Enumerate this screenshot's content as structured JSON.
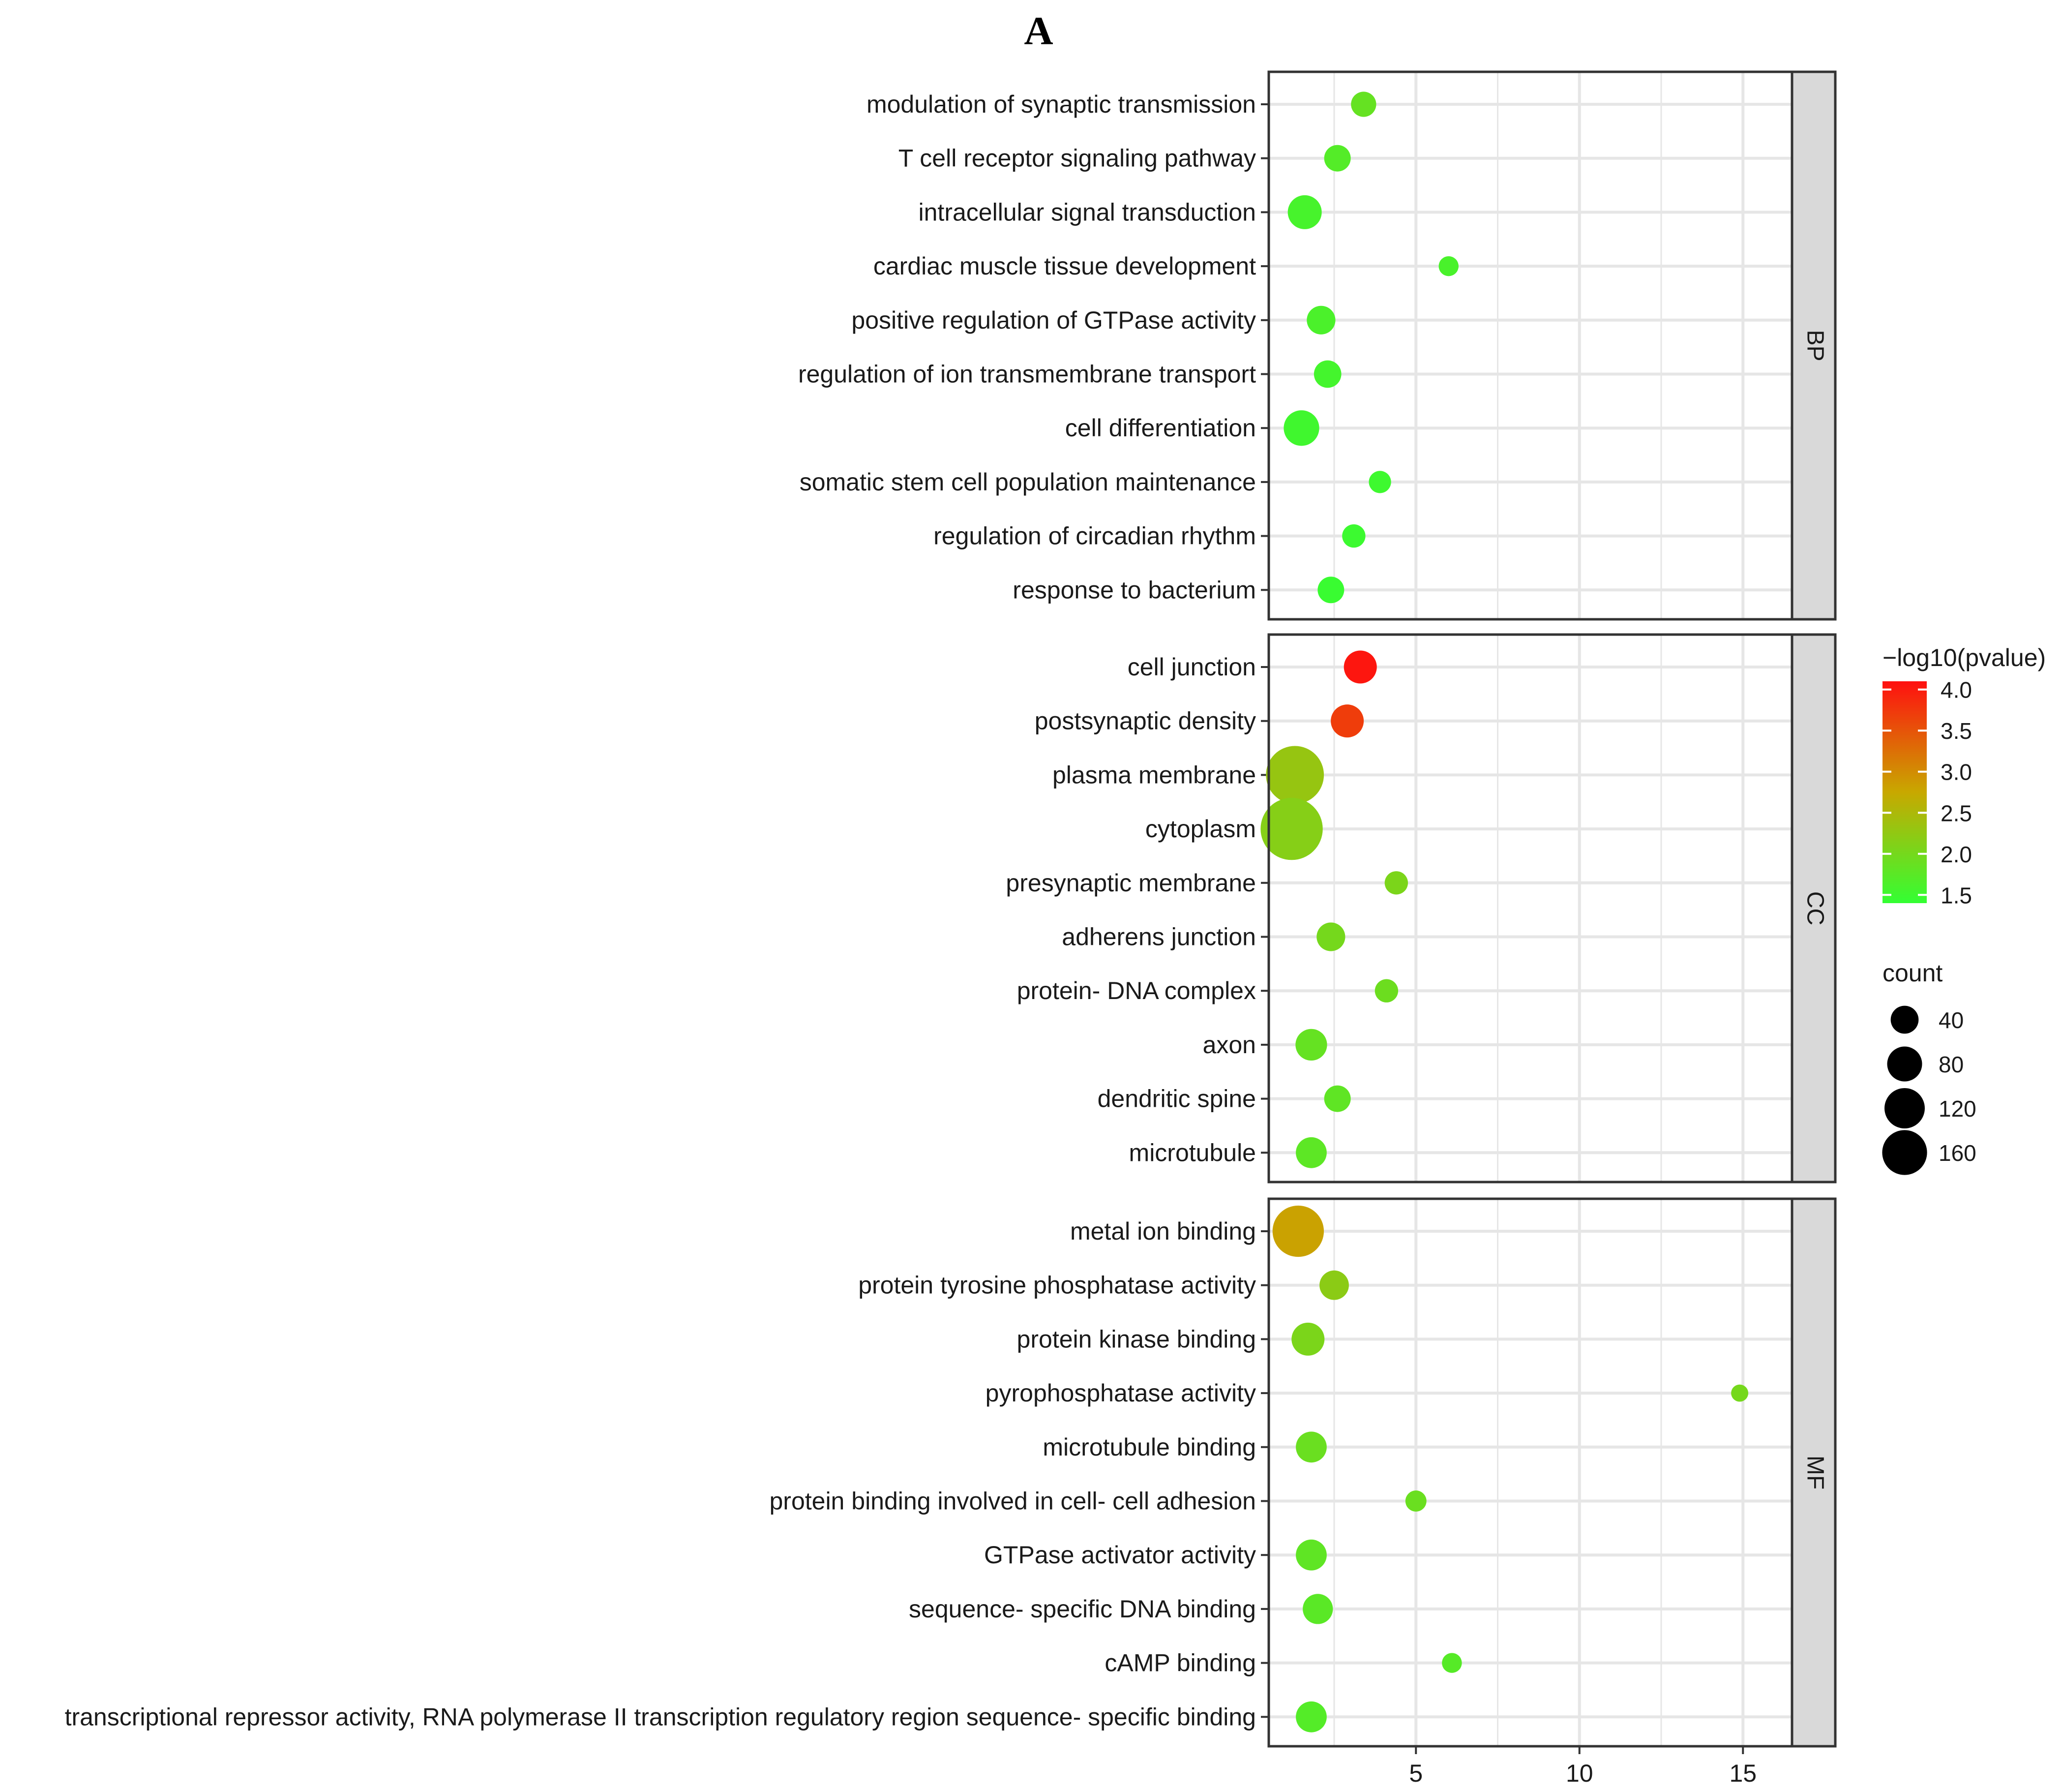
{
  "figure_label": "A",
  "chart_data": {
    "type": "scatter",
    "title": "",
    "xlabel": "",
    "ylabel": "",
    "xlim": [
      0.5,
      16.5
    ],
    "x_ticks": [
      5,
      10,
      15
    ],
    "x_tick_labels": [
      "5",
      "10",
      "15"
    ],
    "grid": true,
    "facets": [
      {
        "name": "BP",
        "items": [
          {
            "term": "modulation of synaptic transmission",
            "x": 3.4,
            "count": 22,
            "neglog10p": 1.85
          },
          {
            "term": "T cell receptor signaling pathway",
            "x": 2.6,
            "count": 25,
            "neglog10p": 1.7
          },
          {
            "term": "intracellular signal transduction",
            "x": 1.6,
            "count": 45,
            "neglog10p": 1.58
          },
          {
            "term": "cardiac muscle tissue development",
            "x": 6.0,
            "count": 12,
            "neglog10p": 1.6
          },
          {
            "term": "positive regulation of GTPase activity",
            "x": 2.1,
            "count": 30,
            "neglog10p": 1.62
          },
          {
            "term": "regulation of ion transmembrane transport",
            "x": 2.3,
            "count": 27,
            "neglog10p": 1.55
          },
          {
            "term": "cell differentiation",
            "x": 1.5,
            "count": 50,
            "neglog10p": 1.52
          },
          {
            "term": "somatic stem cell population maintenance",
            "x": 3.9,
            "count": 16,
            "neglog10p": 1.5
          },
          {
            "term": "regulation of circadian rhythm",
            "x": 3.1,
            "count": 18,
            "neglog10p": 1.48
          },
          {
            "term": "response to bacterium",
            "x": 2.4,
            "count": 25,
            "neglog10p": 1.45
          }
        ]
      },
      {
        "name": "CC",
        "items": [
          {
            "term": "cell junction",
            "x": 3.3,
            "count": 42,
            "neglog10p": 4.05
          },
          {
            "term": "postsynaptic density",
            "x": 2.9,
            "count": 42,
            "neglog10p": 3.7
          },
          {
            "term": "plasma membrane",
            "x": 1.3,
            "count": 150,
            "neglog10p": 2.3
          },
          {
            "term": "cytoplasm",
            "x": 1.2,
            "count": 175,
            "neglog10p": 2.15
          },
          {
            "term": "presynaptic membrane",
            "x": 4.4,
            "count": 18,
            "neglog10p": 2.05
          },
          {
            "term": "adherens junction",
            "x": 2.4,
            "count": 30,
            "neglog10p": 2.0
          },
          {
            "term": "protein- DNA complex",
            "x": 4.1,
            "count": 18,
            "neglog10p": 1.92
          },
          {
            "term": "axon",
            "x": 1.8,
            "count": 38,
            "neglog10p": 1.85
          },
          {
            "term": "dendritic spine",
            "x": 2.6,
            "count": 25,
            "neglog10p": 1.8
          },
          {
            "term": "microtubule",
            "x": 1.8,
            "count": 36,
            "neglog10p": 1.78
          }
        ]
      },
      {
        "name": "MF",
        "items": [
          {
            "term": "metal ion binding",
            "x": 1.4,
            "count": 115,
            "neglog10p": 2.8
          },
          {
            "term": "protein tyrosine phosphatase activity",
            "x": 2.5,
            "count": 32,
            "neglog10p": 2.2
          },
          {
            "term": "protein kinase binding",
            "x": 1.7,
            "count": 42,
            "neglog10p": 2.05
          },
          {
            "term": "pyrophosphatase activity",
            "x": 14.9,
            "count": 8,
            "neglog10p": 2.0
          },
          {
            "term": "microtubule binding",
            "x": 1.8,
            "count": 36,
            "neglog10p": 1.9
          },
          {
            "term": "protein binding involved in cell- cell adhesion",
            "x": 5.0,
            "count": 14,
            "neglog10p": 1.9
          },
          {
            "term": "GTPase activator activity",
            "x": 1.8,
            "count": 36,
            "neglog10p": 1.8
          },
          {
            "term": "sequence- specific DNA binding",
            "x": 2.0,
            "count": 34,
            "neglog10p": 1.75
          },
          {
            "term": "cAMP binding",
            "x": 6.1,
            "count": 12,
            "neglog10p": 1.72
          },
          {
            "term": "transcriptional repressor activity, RNA polymerase II transcription regulatory region sequence- specific binding",
            "x": 1.8,
            "count": 36,
            "neglog10p": 1.7
          }
        ]
      }
    ],
    "color_legend": {
      "title": "−log10(pvalue)",
      "min": 1.4,
      "max": 4.1,
      "ticks": [
        4.0,
        3.5,
        3.0,
        2.5,
        2.0,
        1.5
      ],
      "tick_labels": [
        "4.0",
        "3.5",
        "3.0",
        "2.5",
        "2.0",
        "1.5"
      ],
      "color_low": "#33ff33",
      "color_mid": "#c8a800",
      "color_high": "#ff1010"
    },
    "size_legend": {
      "title": "count",
      "values": [
        40,
        80,
        120,
        160
      ],
      "labels": [
        "40",
        "80",
        "120",
        "160"
      ]
    },
    "colors": {
      "strip_fill": "#d9d9d9",
      "grid": "#e6e6e6",
      "frame": "#333333"
    }
  }
}
